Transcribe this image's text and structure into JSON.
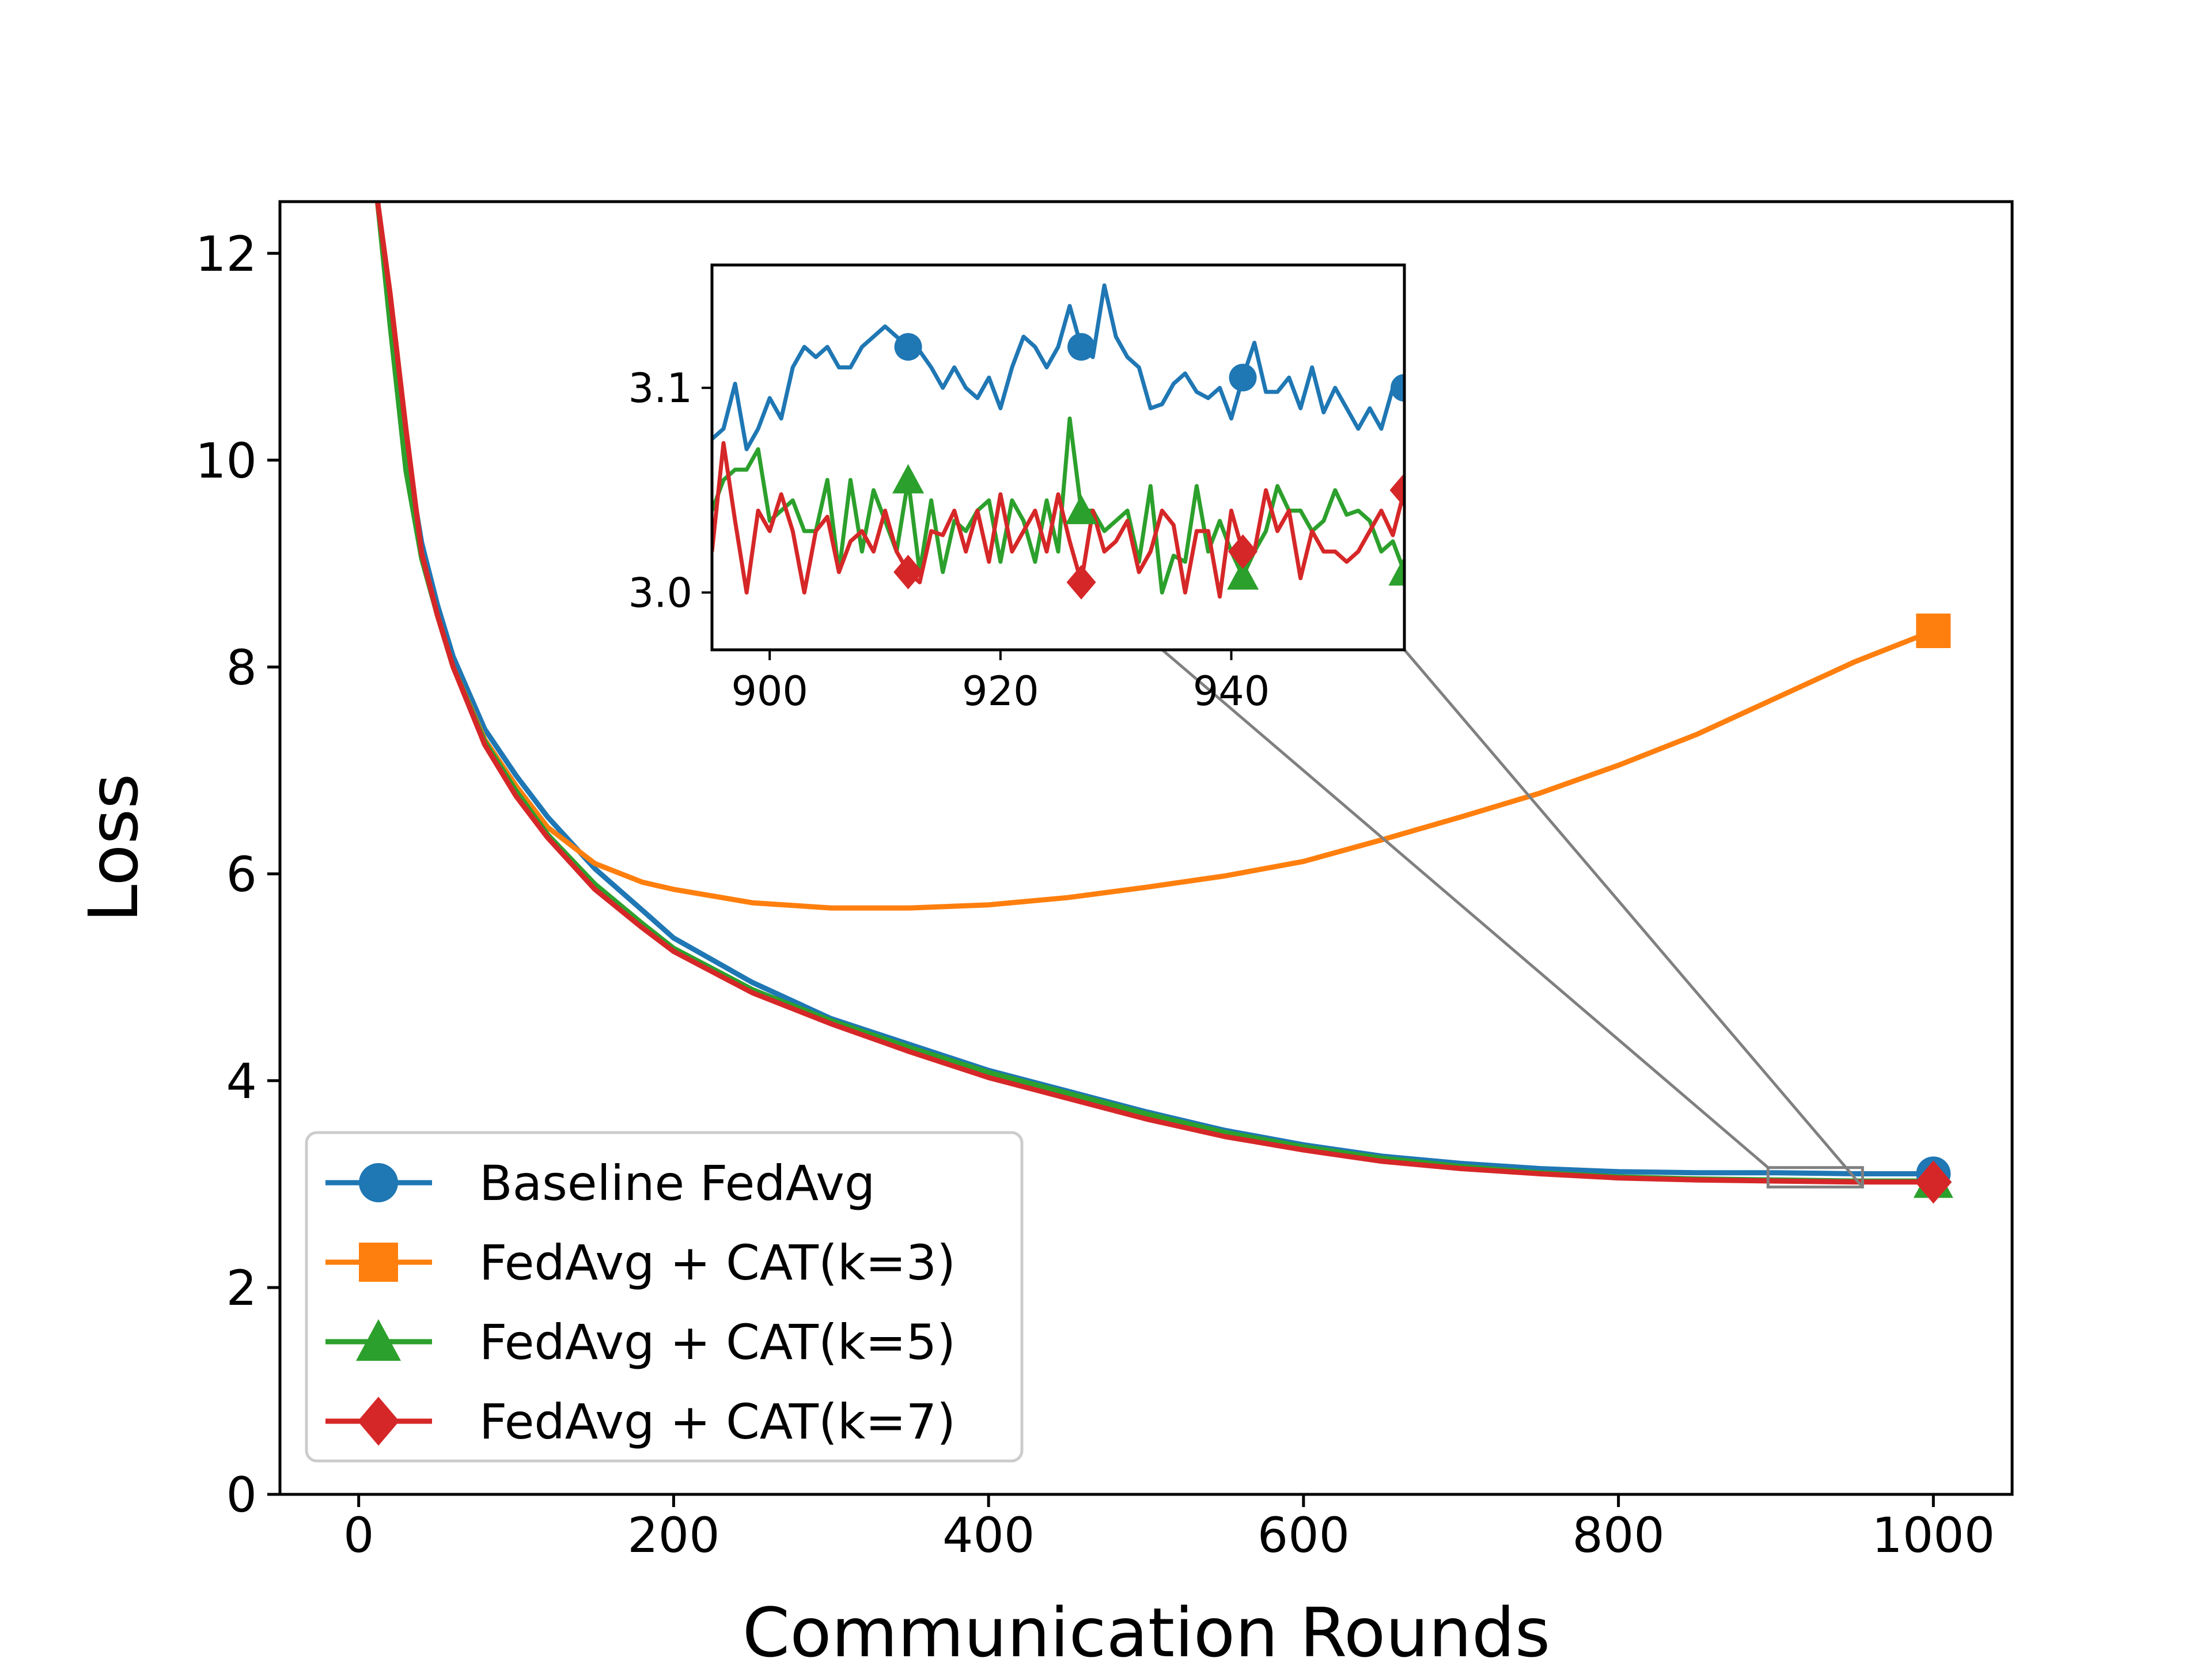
{
  "chart_data": [
    {
      "type": "line",
      "xlabel": "Communication Rounds",
      "ylabel": "Loss",
      "xlim": [
        -50,
        1050
      ],
      "ylim": [
        0,
        12.5
      ],
      "xticks": [
        0,
        200,
        400,
        600,
        800,
        1000
      ],
      "yticks": [
        0,
        2,
        4,
        6,
        8,
        10,
        12
      ],
      "grid": false,
      "legend_position": "lower-left",
      "series": [
        {
          "name": "Baseline FedAvg",
          "color": "#1f77b4",
          "marker": "circle",
          "x": [
            12,
            20,
            30,
            40,
            50,
            60,
            80,
            100,
            120,
            150,
            180,
            200,
            250,
            300,
            350,
            400,
            450,
            500,
            550,
            600,
            650,
            700,
            750,
            800,
            850,
            900,
            950,
            1000
          ],
          "y": [
            12.5,
            11.5,
            10.1,
            9.2,
            8.6,
            8.1,
            7.4,
            6.95,
            6.55,
            6.05,
            5.65,
            5.38,
            4.95,
            4.6,
            4.35,
            4.1,
            3.9,
            3.7,
            3.52,
            3.38,
            3.27,
            3.2,
            3.15,
            3.12,
            3.11,
            3.11,
            3.1,
            3.1
          ]
        },
        {
          "name": "FedAvg + CAT(k=3)",
          "color": "#ff7f0e",
          "marker": "square",
          "x": [
            12,
            20,
            30,
            40,
            50,
            60,
            80,
            100,
            120,
            150,
            180,
            200,
            250,
            300,
            350,
            400,
            450,
            500,
            550,
            600,
            650,
            700,
            750,
            800,
            850,
            900,
            950,
            1000
          ],
          "y": [
            12.5,
            11.4,
            10.0,
            9.1,
            8.5,
            8.0,
            7.3,
            6.85,
            6.45,
            6.1,
            5.92,
            5.85,
            5.72,
            5.67,
            5.67,
            5.7,
            5.77,
            5.87,
            5.98,
            6.12,
            6.33,
            6.55,
            6.78,
            7.05,
            7.35,
            7.7,
            8.05,
            8.35
          ]
        },
        {
          "name": "FedAvg + CAT(k=5)",
          "color": "#2ca02c",
          "marker": "triangle",
          "x": [
            12,
            20,
            30,
            40,
            50,
            60,
            80,
            100,
            120,
            150,
            180,
            200,
            250,
            300,
            350,
            400,
            450,
            500,
            550,
            600,
            650,
            700,
            750,
            800,
            850,
            900,
            950,
            1000
          ],
          "y": [
            12.5,
            11.3,
            9.9,
            9.05,
            8.5,
            8.0,
            7.28,
            6.8,
            6.38,
            5.9,
            5.52,
            5.28,
            4.88,
            4.58,
            4.32,
            4.08,
            3.88,
            3.68,
            3.5,
            3.36,
            3.25,
            3.17,
            3.11,
            3.07,
            3.05,
            3.04,
            3.03,
            3.03
          ]
        },
        {
          "name": "FedAvg + CAT(k=7)",
          "color": "#d62728",
          "marker": "diamond",
          "x": [
            12,
            20,
            30,
            40,
            50,
            60,
            80,
            100,
            120,
            150,
            180,
            200,
            250,
            300,
            350,
            400,
            450,
            500,
            550,
            600,
            650,
            700,
            750,
            800,
            850,
            900,
            950,
            1000
          ],
          "y": [
            12.5,
            11.6,
            10.3,
            9.1,
            8.5,
            8.0,
            7.25,
            6.75,
            6.35,
            5.85,
            5.48,
            5.25,
            4.85,
            4.55,
            4.28,
            4.03,
            3.83,
            3.63,
            3.46,
            3.33,
            3.22,
            3.15,
            3.1,
            3.06,
            3.04,
            3.03,
            3.02,
            3.02
          ]
        }
      ]
    },
    {
      "type": "line",
      "xlim": [
        895,
        955
      ],
      "ylim": [
        2.972,
        3.16
      ],
      "xticks": [
        900,
        920,
        940
      ],
      "yticks": [
        3.0,
        3.1
      ],
      "grid": false,
      "series": [
        {
          "name": "Baseline FedAvg",
          "color": "#1f77b4",
          "marker": "circle",
          "x": [
            895,
            896,
            897,
            898,
            899,
            900,
            901,
            902,
            903,
            904,
            905,
            906,
            907,
            908,
            909,
            910,
            911,
            912,
            913,
            914,
            915,
            916,
            917,
            918,
            919,
            920,
            921,
            922,
            923,
            924,
            925,
            926,
            927,
            928,
            929,
            930,
            931,
            932,
            933,
            934,
            935,
            936,
            937,
            938,
            939,
            940,
            941,
            942,
            943,
            944,
            945,
            946,
            947,
            948,
            949,
            950,
            951,
            952,
            953,
            954,
            955
          ],
          "y": [
            3.075,
            3.08,
            3.102,
            3.07,
            3.08,
            3.095,
            3.085,
            3.11,
            3.12,
            3.115,
            3.12,
            3.11,
            3.11,
            3.12,
            3.125,
            3.13,
            3.125,
            3.12,
            3.118,
            3.11,
            3.1,
            3.11,
            3.1,
            3.095,
            3.105,
            3.09,
            3.11,
            3.125,
            3.12,
            3.11,
            3.12,
            3.14,
            3.12,
            3.115,
            3.15,
            3.125,
            3.115,
            3.11,
            3.09,
            3.092,
            3.102,
            3.107,
            3.098,
            3.095,
            3.1,
            3.085,
            3.105,
            3.122,
            3.098,
            3.098,
            3.105,
            3.09,
            3.11,
            3.088,
            3.1,
            3.09,
            3.08,
            3.09,
            3.08,
            3.1,
            3.1
          ]
        },
        {
          "name": "FedAvg + CAT(k=5)",
          "color": "#2ca02c",
          "marker": "triangle",
          "x": [
            895,
            896,
            897,
            898,
            899,
            900,
            901,
            902,
            903,
            904,
            905,
            906,
            907,
            908,
            909,
            910,
            911,
            912,
            913,
            914,
            915,
            916,
            917,
            918,
            919,
            920,
            921,
            922,
            923,
            924,
            925,
            926,
            927,
            928,
            929,
            930,
            931,
            932,
            933,
            934,
            935,
            936,
            937,
            938,
            939,
            940,
            941,
            942,
            943,
            944,
            945,
            946,
            947,
            948,
            949,
            950,
            951,
            952,
            953,
            954,
            955
          ],
          "y": [
            3.04,
            3.055,
            3.06,
            3.06,
            3.07,
            3.035,
            3.04,
            3.045,
            3.03,
            3.03,
            3.055,
            3.01,
            3.055,
            3.02,
            3.05,
            3.035,
            3.02,
            3.055,
            3.01,
            3.045,
            3.01,
            3.035,
            3.03,
            3.04,
            3.045,
            3.015,
            3.045,
            3.035,
            3.015,
            3.045,
            3.02,
            3.085,
            3.04,
            3.04,
            3.03,
            3.035,
            3.04,
            3.015,
            3.052,
            3.0,
            3.018,
            3.015,
            3.052,
            3.02,
            3.035,
            3.02,
            3.008,
            3.02,
            3.03,
            3.052,
            3.04,
            3.04,
            3.03,
            3.035,
            3.05,
            3.038,
            3.04,
            3.035,
            3.02,
            3.025,
            3.01
          ]
        },
        {
          "name": "FedAvg + CAT(k=7)",
          "color": "#d62728",
          "marker": "diamond",
          "x": [
            895,
            896,
            897,
            898,
            899,
            900,
            901,
            902,
            903,
            904,
            905,
            906,
            907,
            908,
            909,
            910,
            911,
            912,
            913,
            914,
            915,
            916,
            917,
            918,
            919,
            920,
            921,
            922,
            923,
            924,
            925,
            926,
            927,
            928,
            929,
            930,
            931,
            932,
            933,
            934,
            935,
            936,
            937,
            938,
            939,
            940,
            941,
            942,
            943,
            944,
            945,
            946,
            947,
            948,
            949,
            950,
            951,
            952,
            953,
            954,
            955
          ],
          "y": [
            3.02,
            3.073,
            3.035,
            3.0,
            3.04,
            3.03,
            3.048,
            3.03,
            3.0,
            3.03,
            3.037,
            3.01,
            3.025,
            3.03,
            3.02,
            3.04,
            3.02,
            3.01,
            3.005,
            3.03,
            3.028,
            3.04,
            3.02,
            3.04,
            3.015,
            3.048,
            3.02,
            3.03,
            3.04,
            3.02,
            3.048,
            3.025,
            3.005,
            3.04,
            3.02,
            3.025,
            3.035,
            3.01,
            3.02,
            3.04,
            3.033,
            3.0,
            3.03,
            3.03,
            2.998,
            3.04,
            3.02,
            3.02,
            3.05,
            3.03,
            3.04,
            3.007,
            3.03,
            3.02,
            3.02,
            3.015,
            3.02,
            3.03,
            3.04,
            3.028,
            3.05
          ]
        }
      ]
    }
  ]
}
